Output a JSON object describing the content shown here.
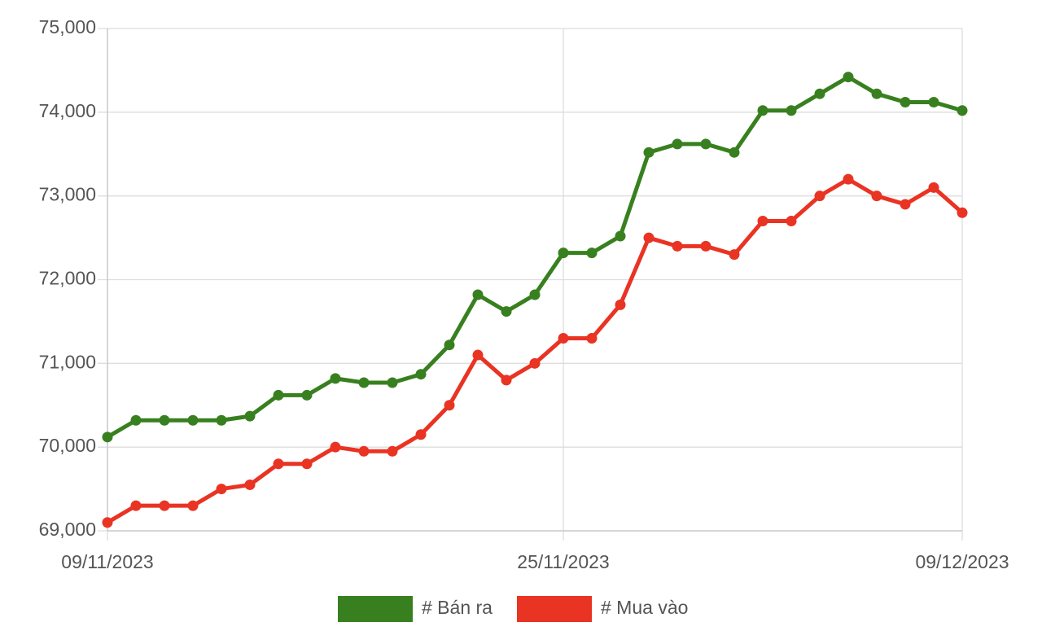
{
  "chart_data": {
    "type": "line",
    "categories": [
      "09/11/2023",
      null,
      null,
      null,
      null,
      null,
      null,
      null,
      null,
      null,
      null,
      null,
      null,
      null,
      null,
      null,
      "25/11/2023",
      null,
      null,
      null,
      null,
      null,
      null,
      null,
      null,
      null,
      null,
      null,
      null,
      null,
      "09/12/2023"
    ],
    "series": [
      {
        "name": "# Bán ra",
        "color": "#38801f",
        "values": [
          70120,
          70320,
          70320,
          70320,
          70320,
          70370,
          70620,
          70620,
          70820,
          70770,
          70770,
          70870,
          71220,
          71820,
          71620,
          71820,
          72320,
          72320,
          72520,
          73520,
          73620,
          73620,
          73520,
          74020,
          74020,
          74220,
          74420,
          74220,
          74120,
          74120,
          74020
        ]
      },
      {
        "name": "# Mua vào",
        "color": "#e93323",
        "values": [
          69100,
          69300,
          69300,
          69300,
          69500,
          69550,
          69800,
          69800,
          70000,
          69950,
          69950,
          70150,
          70500,
          71100,
          70800,
          71000,
          71300,
          71300,
          71700,
          72500,
          72400,
          72400,
          72300,
          72700,
          72700,
          73000,
          73200,
          73000,
          72900,
          73100,
          72800
        ]
      }
    ],
    "ylim": [
      69000,
      75000
    ],
    "yticks": [
      {
        "value": 69000,
        "label": "69,000"
      },
      {
        "value": 70000,
        "label": "70,000"
      },
      {
        "value": 71000,
        "label": "71,000"
      },
      {
        "value": 72000,
        "label": "72,000"
      },
      {
        "value": 73000,
        "label": "73,000"
      },
      {
        "value": 74000,
        "label": "74,000"
      },
      {
        "value": 75000,
        "label": "75,000"
      }
    ],
    "grid": true,
    "legend": "bottom"
  }
}
